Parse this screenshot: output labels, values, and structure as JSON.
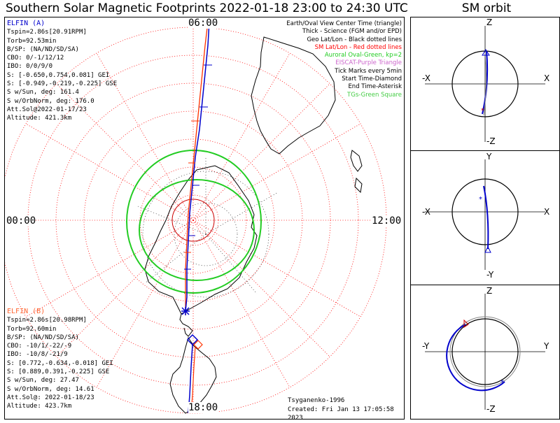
{
  "title": "Southern Solar Magnetic Footprints 2022-01-18 23:00 to 24:30 UTC",
  "sm_title": "SM orbit",
  "elfin_a": {
    "name": "ELFIN (A)",
    "color": "#0000cc",
    "lines": [
      "Tspin=2.86s[20.91RPM]",
      "Torb=92.53min",
      "B/SP: (NA/ND/SD/SA)",
      "CBO: 0/-1/12/12",
      "IBO: 0/0/9/0",
      "S: [-0.650,0.754,0.081] GEI",
      "S: [-0.949,-0.219,-0.225] GSE",
      "S w/Sun, deg: 161.4",
      "S w/OrbNorm, deg: 176.0",
      "Att.Sol@2022-01-17/23",
      "Altitude: 421.3km"
    ]
  },
  "elfin_b": {
    "name": "ELFIN (B)",
    "color": "#ff6633",
    "lines": [
      "Tspin=2.86s[20.98RPM]",
      "Torb=92.60min",
      "B/SP: (NA/ND/SD/SA)",
      "CBO: -10/1/-22/-9",
      "IBO: -10/8/-21/9",
      "S: [0.772,-0.634,-0.018] GEI",
      "S: [0.889,0.391,-0.225] GSE",
      "S w/Sun, deg: 27.47",
      "S w/OrbNorm, deg: 14.61",
      "Att.Sol@: 2022-01-18/23",
      "Altitude: 423.7km"
    ]
  },
  "legend": [
    {
      "text": "Earth/Oval View Center Time (triangle)",
      "color": "#000000"
    },
    {
      "text": "Thick - Science (FGM and/or EPD)",
      "color": "#000000"
    },
    {
      "text": "Geo Lat/Lon - Black dotted lines",
      "color": "#000000"
    },
    {
      "text": "SM Lat/Lon - Red dotted lines",
      "color": "#ff0000"
    },
    {
      "text": "Auroral Oval-Green, kp=2",
      "color": "#22cc22"
    },
    {
      "text": "EISCAT-Purple Triangle",
      "color": "#cc66cc"
    },
    {
      "text": "Tick Marks every 5min",
      "color": "#000000"
    },
    {
      "text": "Start Time-Diamond",
      "color": "#000000"
    },
    {
      "text": "End Time-Asterisk",
      "color": "#000000"
    },
    {
      "text": "TGs-Green Square",
      "color": "#44cc44"
    }
  ],
  "clock_labels": {
    "top": "06:00",
    "left": "00:00",
    "right": "12:00",
    "bottom": "18:00"
  },
  "credits": [
    "Tsyganenko-1996",
    "Created: Fri Jan 13 17:05:58 2023"
  ],
  "orbit_panels": [
    {
      "top": "Z",
      "bottom": "-Z",
      "left": "-X",
      "right": "X"
    },
    {
      "top": "Y",
      "bottom": "-Y",
      "left": "-X",
      "right": "X"
    },
    {
      "top": "Z",
      "bottom": "-Z",
      "left": "-Y",
      "right": "Y"
    }
  ],
  "colors": {
    "elfin_a": "#0000cc",
    "elfin_b": "#ff3300",
    "oval": "#22cc22",
    "sm_grid": "#ff0000",
    "geo_grid": "#000000"
  }
}
